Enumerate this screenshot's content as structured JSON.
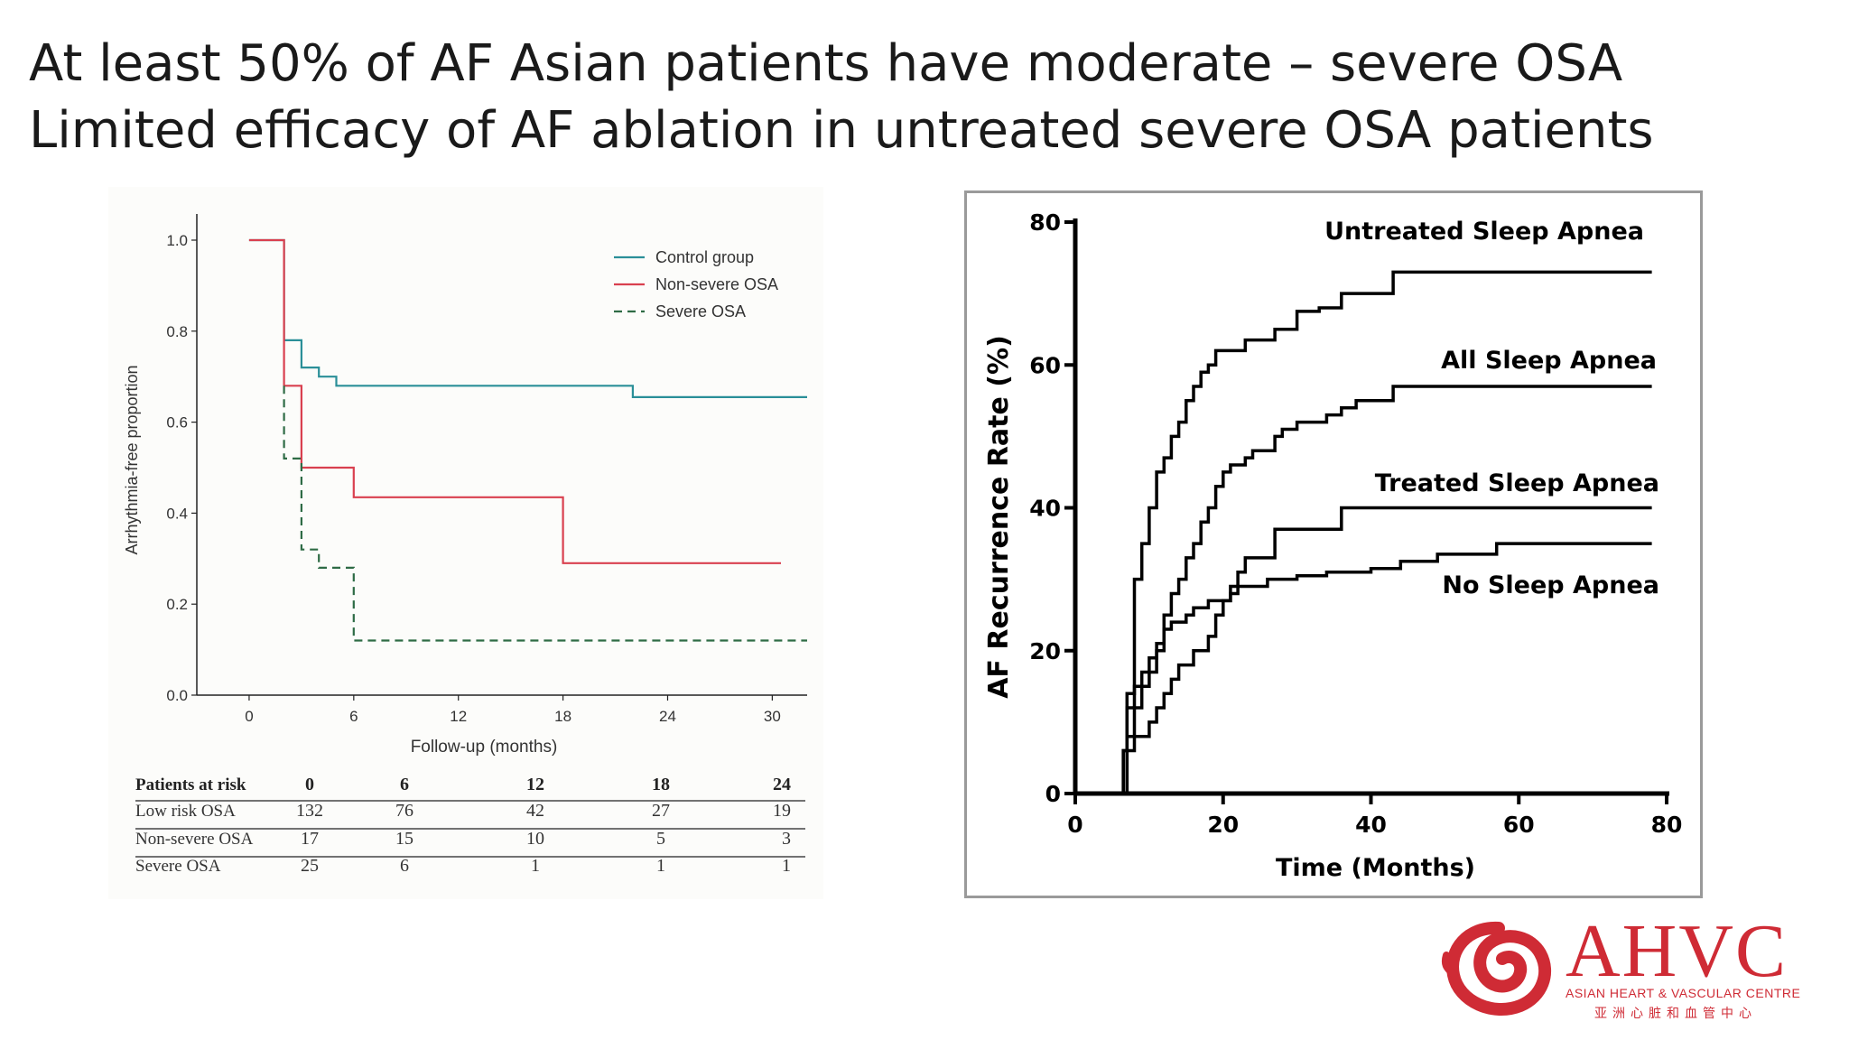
{
  "slide": {
    "title_line1": "At least 50% of AF Asian patients have moderate – severe OSA",
    "title_line2": "Limited efficacy of AF ablation in untreated severe OSA patients"
  },
  "logo": {
    "name": "AHVC",
    "subtitle": "ASIAN HEART & VASCULAR CENTRE",
    "subtitle_cn": "亚洲心脏和血管中心",
    "color": "#cf2b35"
  },
  "chart_data": [
    {
      "type": "line",
      "step": true,
      "xlabel": "Follow-up (months)",
      "ylabel": "Arrhythmia-free proportion",
      "xlim": [
        -3,
        32
      ],
      "ylim": [
        0,
        1.0
      ],
      "xticks": [
        0,
        6,
        12,
        18,
        24,
        30
      ],
      "yticks": [
        0.0,
        0.2,
        0.4,
        0.6,
        0.8,
        1.0
      ],
      "ytick_labels": [
        "0.0",
        "0.2",
        "0.4",
        "0.6",
        "0.8",
        "1.0"
      ],
      "legend_position": "top-right",
      "series": [
        {
          "name": "Control group",
          "color": "#2a8f98",
          "dash": false,
          "points": [
            [
              0,
              1.0
            ],
            [
              2,
              1.0
            ],
            [
              2,
              0.78
            ],
            [
              3,
              0.78
            ],
            [
              3,
              0.72
            ],
            [
              4,
              0.72
            ],
            [
              4,
              0.7
            ],
            [
              5,
              0.7
            ],
            [
              5,
              0.68
            ],
            [
              22,
              0.68
            ],
            [
              22,
              0.655
            ],
            [
              32,
              0.655
            ]
          ]
        },
        {
          "name": "Non-severe OSA",
          "color": "#d9404f",
          "dash": false,
          "points": [
            [
              0,
              1.0
            ],
            [
              2,
              1.0
            ],
            [
              2,
              0.68
            ],
            [
              3,
              0.68
            ],
            [
              3,
              0.5
            ],
            [
              6,
              0.5
            ],
            [
              6,
              0.435
            ],
            [
              18,
              0.435
            ],
            [
              18,
              0.29
            ],
            [
              30.5,
              0.29
            ]
          ]
        },
        {
          "name": "Severe OSA",
          "color": "#2e6b45",
          "dash": true,
          "points": [
            [
              2,
              0.68
            ],
            [
              2,
              0.52
            ],
            [
              3,
              0.52
            ],
            [
              3,
              0.32
            ],
            [
              4,
              0.32
            ],
            [
              4,
              0.28
            ],
            [
              6,
              0.28
            ],
            [
              6,
              0.12
            ],
            [
              32,
              0.12
            ]
          ]
        }
      ],
      "risk_table": {
        "header": "Patients at risk",
        "timepoints": [
          "0",
          "6",
          "12",
          "18",
          "24"
        ],
        "rows": [
          {
            "label": "Low risk OSA",
            "values": [
              "132",
              "76",
              "42",
              "27",
              "19"
            ]
          },
          {
            "label": "Non-severe OSA",
            "values": [
              "17",
              "15",
              "10",
              "5",
              "3"
            ]
          },
          {
            "label": "Severe OSA",
            "values": [
              "25",
              "6",
              "1",
              "1",
              "1"
            ]
          }
        ]
      }
    },
    {
      "type": "line",
      "step": true,
      "xlabel": "Time (Months)",
      "ylabel": "AF Recurrence Rate (%)",
      "xlim": [
        0,
        80
      ],
      "ylim": [
        0,
        80
      ],
      "xticks": [
        0,
        20,
        40,
        60,
        80
      ],
      "yticks": [
        0,
        20,
        40,
        60,
        80
      ],
      "series": [
        {
          "name": "Untreated Sleep Apnea",
          "points": [
            [
              5.5,
              0
            ],
            [
              7,
              0
            ],
            [
              7,
              14
            ],
            [
              8,
              14
            ],
            [
              8,
              30
            ],
            [
              9,
              30
            ],
            [
              9,
              35
            ],
            [
              10,
              35
            ],
            [
              10,
              40
            ],
            [
              11,
              40
            ],
            [
              11,
              45
            ],
            [
              12,
              45
            ],
            [
              12,
              47
            ],
            [
              13,
              47
            ],
            [
              13,
              50
            ],
            [
              14,
              50
            ],
            [
              14,
              52
            ],
            [
              15,
              52
            ],
            [
              15,
              55
            ],
            [
              16,
              55
            ],
            [
              16,
              57
            ],
            [
              17,
              57
            ],
            [
              17,
              59
            ],
            [
              18,
              59
            ],
            [
              18,
              60
            ],
            [
              19,
              60
            ],
            [
              19,
              62
            ],
            [
              23,
              62
            ],
            [
              23,
              63.5
            ],
            [
              27,
              63.5
            ],
            [
              27,
              65
            ],
            [
              30,
              65
            ],
            [
              30,
              67.5
            ],
            [
              33,
              67.5
            ],
            [
              33,
              68
            ],
            [
              36,
              68
            ],
            [
              36,
              70
            ],
            [
              43,
              70
            ],
            [
              43,
              73
            ],
            [
              78,
              73
            ]
          ]
        },
        {
          "name": "All Sleep Apnea",
          "points": [
            [
              7,
              0
            ],
            [
              7,
              8
            ],
            [
              8,
              8
            ],
            [
              8,
              12
            ],
            [
              9,
              12
            ],
            [
              9,
              15
            ],
            [
              10,
              15
            ],
            [
              10,
              17
            ],
            [
              11,
              17
            ],
            [
              11,
              20
            ],
            [
              12,
              20
            ],
            [
              12,
              25
            ],
            [
              13,
              25
            ],
            [
              13,
              28
            ],
            [
              14,
              28
            ],
            [
              14,
              30
            ],
            [
              15,
              30
            ],
            [
              15,
              33
            ],
            [
              16,
              33
            ],
            [
              16,
              35
            ],
            [
              17,
              35
            ],
            [
              17,
              38
            ],
            [
              18,
              38
            ],
            [
              18,
              40
            ],
            [
              19,
              40
            ],
            [
              19,
              43
            ],
            [
              20,
              43
            ],
            [
              20,
              45
            ],
            [
              21,
              45
            ],
            [
              21,
              46
            ],
            [
              23,
              46
            ],
            [
              23,
              47
            ],
            [
              24,
              47
            ],
            [
              24,
              48
            ],
            [
              27,
              48
            ],
            [
              27,
              50
            ],
            [
              28,
              50
            ],
            [
              28,
              51
            ],
            [
              30,
              51
            ],
            [
              30,
              52
            ],
            [
              34,
              52
            ],
            [
              34,
              53
            ],
            [
              36,
              53
            ],
            [
              36,
              54
            ],
            [
              38,
              54
            ],
            [
              38,
              55
            ],
            [
              43,
              55
            ],
            [
              43,
              57
            ],
            [
              78,
              57
            ]
          ]
        },
        {
          "name": "Treated Sleep Apnea",
          "points": [
            [
              6.5,
              0
            ],
            [
              6.5,
              6
            ],
            [
              8,
              6
            ],
            [
              8,
              8
            ],
            [
              10,
              8
            ],
            [
              10,
              10
            ],
            [
              11,
              10
            ],
            [
              11,
              12
            ],
            [
              12,
              12
            ],
            [
              12,
              14
            ],
            [
              13,
              14
            ],
            [
              13,
              16
            ],
            [
              14,
              16
            ],
            [
              14,
              18
            ],
            [
              16,
              18
            ],
            [
              16,
              20
            ],
            [
              18,
              20
            ],
            [
              18,
              22
            ],
            [
              19,
              22
            ],
            [
              19,
              25
            ],
            [
              20,
              25
            ],
            [
              20,
              27
            ],
            [
              21,
              27
            ],
            [
              21,
              29
            ],
            [
              22,
              29
            ],
            [
              22,
              31
            ],
            [
              23,
              31
            ],
            [
              23,
              33
            ],
            [
              27,
              33
            ],
            [
              27,
              37
            ],
            [
              36,
              37
            ],
            [
              36,
              40
            ],
            [
              78,
              40
            ]
          ]
        },
        {
          "name": "No Sleep Apnea",
          "points": [
            [
              6.5,
              0
            ],
            [
              6.5,
              6
            ],
            [
              7,
              6
            ],
            [
              7,
              12
            ],
            [
              8,
              12
            ],
            [
              8,
              15
            ],
            [
              9,
              15
            ],
            [
              9,
              17
            ],
            [
              10,
              17
            ],
            [
              10,
              19
            ],
            [
              11,
              19
            ],
            [
              11,
              21
            ],
            [
              12,
              21
            ],
            [
              12,
              23
            ],
            [
              13,
              23
            ],
            [
              13,
              24
            ],
            [
              15,
              24
            ],
            [
              15,
              25
            ],
            [
              16,
              25
            ],
            [
              16,
              26
            ],
            [
              18,
              26
            ],
            [
              18,
              27
            ],
            [
              21,
              27
            ],
            [
              21,
              28
            ],
            [
              22,
              28
            ],
            [
              22,
              29
            ],
            [
              26,
              29
            ],
            [
              26,
              30
            ],
            [
              30,
              30
            ],
            [
              30,
              30.5
            ],
            [
              34,
              30.5
            ],
            [
              34,
              31
            ],
            [
              40,
              31
            ],
            [
              40,
              31.5
            ],
            [
              44,
              31.5
            ],
            [
              44,
              32.5
            ],
            [
              49,
              32.5
            ],
            [
              49,
              33.5
            ],
            [
              57,
              33.5
            ],
            [
              57,
              35
            ],
            [
              78,
              35
            ]
          ]
        }
      ]
    }
  ]
}
